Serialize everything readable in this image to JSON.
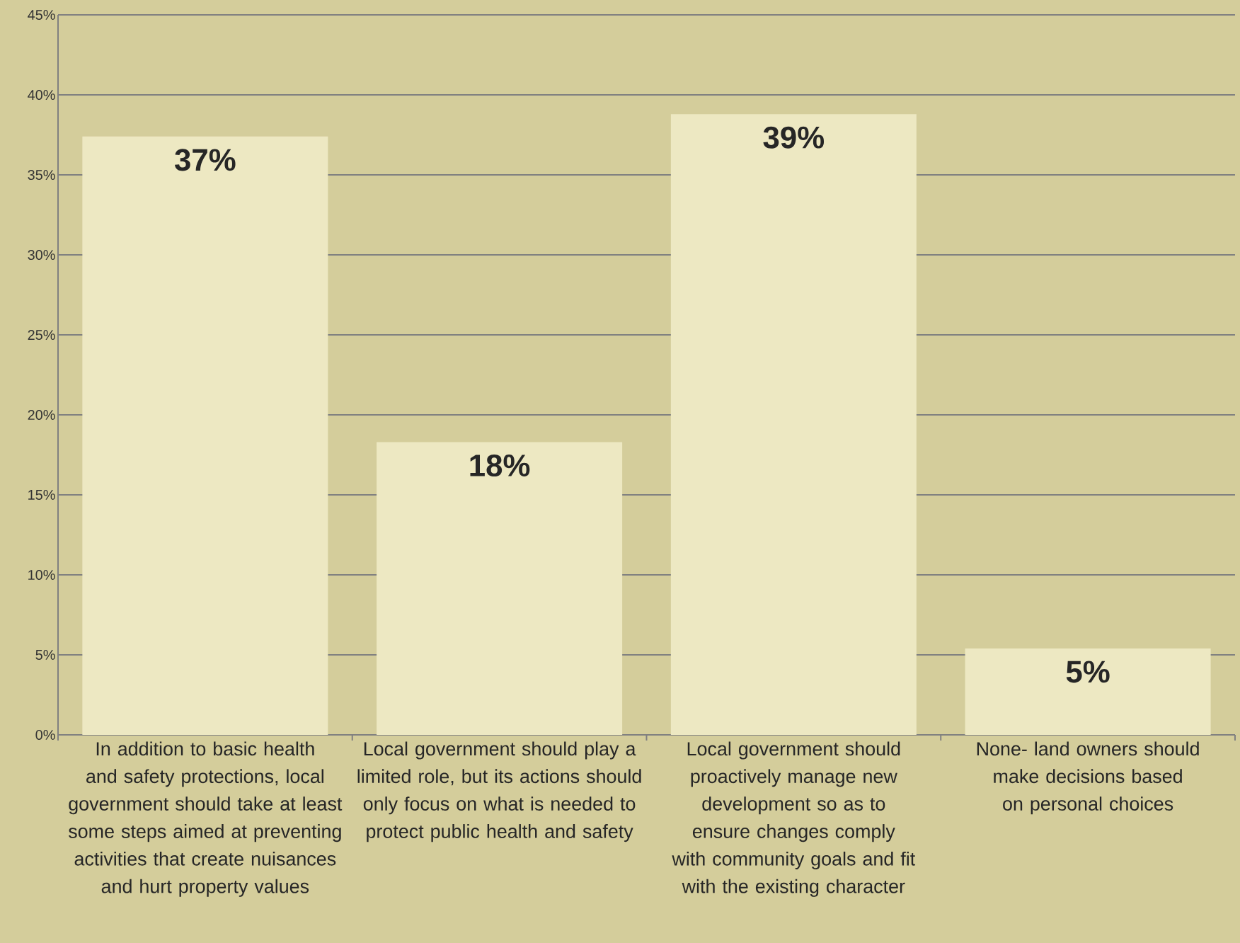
{
  "chart_data": {
    "type": "bar",
    "categories": [
      "In addition to basic health and safety protections, local government should take at least some steps aimed at preventing activities that create nuisances and hurt property values",
      "Local government should play a limited role, but its actions should only focus on what is needed to protect public health and safety",
      "Local government should proactively manage new development so as to ensure changes comply with community goals and fit with the existing character",
      "None- land owners should make decisions based on personal choices"
    ],
    "values": [
      37.4,
      18.3,
      38.8,
      5.4
    ],
    "value_labels": [
      "37%",
      "18%",
      "39%",
      "5%"
    ],
    "color": "#ede8c2",
    "ylim": [
      0,
      45
    ],
    "yticks": [
      {
        "value": 0,
        "label": "0%"
      },
      {
        "value": 5,
        "label": "5%"
      },
      {
        "value": 10,
        "label": "10%"
      },
      {
        "value": 15,
        "label": "15%"
      },
      {
        "value": 20,
        "label": "20%"
      },
      {
        "value": 25,
        "label": "25%"
      },
      {
        "value": 30,
        "label": "30%"
      },
      {
        "value": 35,
        "label": "35%"
      },
      {
        "value": 40,
        "label": "40%"
      },
      {
        "value": 45,
        "label": "45%"
      }
    ],
    "grid": "y"
  }
}
